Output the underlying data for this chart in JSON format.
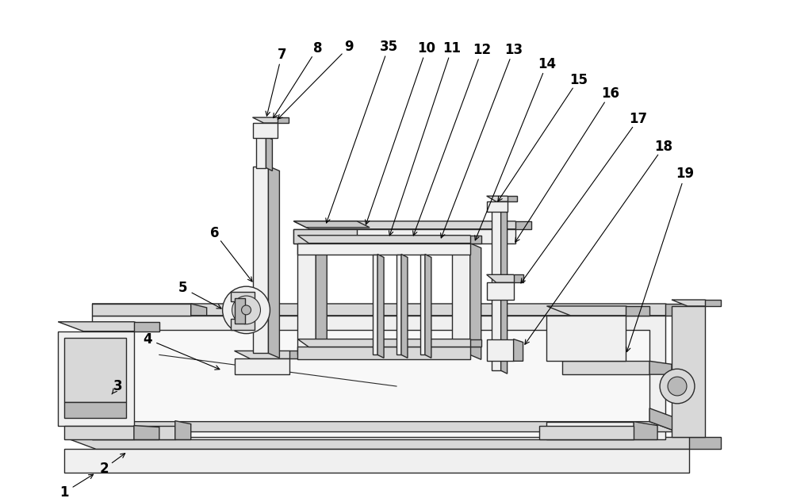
{
  "bg_color": "#ffffff",
  "lc": "#2a2a2a",
  "fl": "#f0f0f0",
  "fm": "#d8d8d8",
  "fd": "#b8b8b8",
  "fdd": "#989898",
  "figsize": [
    10.0,
    6.33
  ],
  "dpi": 100
}
